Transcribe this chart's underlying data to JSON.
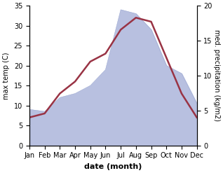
{
  "months": [
    "Jan",
    "Feb",
    "Mar",
    "Apr",
    "May",
    "Jun",
    "Jul",
    "Aug",
    "Sep",
    "Oct",
    "Nov",
    "Dec"
  ],
  "x": [
    0,
    1,
    2,
    3,
    4,
    5,
    6,
    7,
    8,
    9,
    10,
    11
  ],
  "temperature": [
    7,
    8,
    13,
    16,
    21,
    23,
    29,
    32,
    31,
    22,
    13,
    7
  ],
  "precipitation_left_scale": [
    9,
    8.5,
    12,
    13,
    15,
    19,
    34,
    33,
    29,
    20,
    18,
    10.5
  ],
  "precip_right_ticks": [
    0,
    5,
    10,
    15,
    20
  ],
  "precip_right_tick_positions": [
    0,
    8.75,
    17.5,
    26.25,
    35
  ],
  "temp_color": "#993344",
  "precip_fill_color": "#b8c0e0",
  "precip_edge_color": "#9ba8d0",
  "ylim_left": [
    0,
    35
  ],
  "yticks_left": [
    0,
    5,
    10,
    15,
    20,
    25,
    30,
    35
  ],
  "xlabel": "date (month)",
  "ylabel_left": "max temp (C)",
  "ylabel_right": "med. precipitation (kg/m2)",
  "bg_color": "#ffffff",
  "line_width": 1.8,
  "label_fontsize": 7,
  "xlabel_fontsize": 8,
  "tick_fontsize": 7
}
